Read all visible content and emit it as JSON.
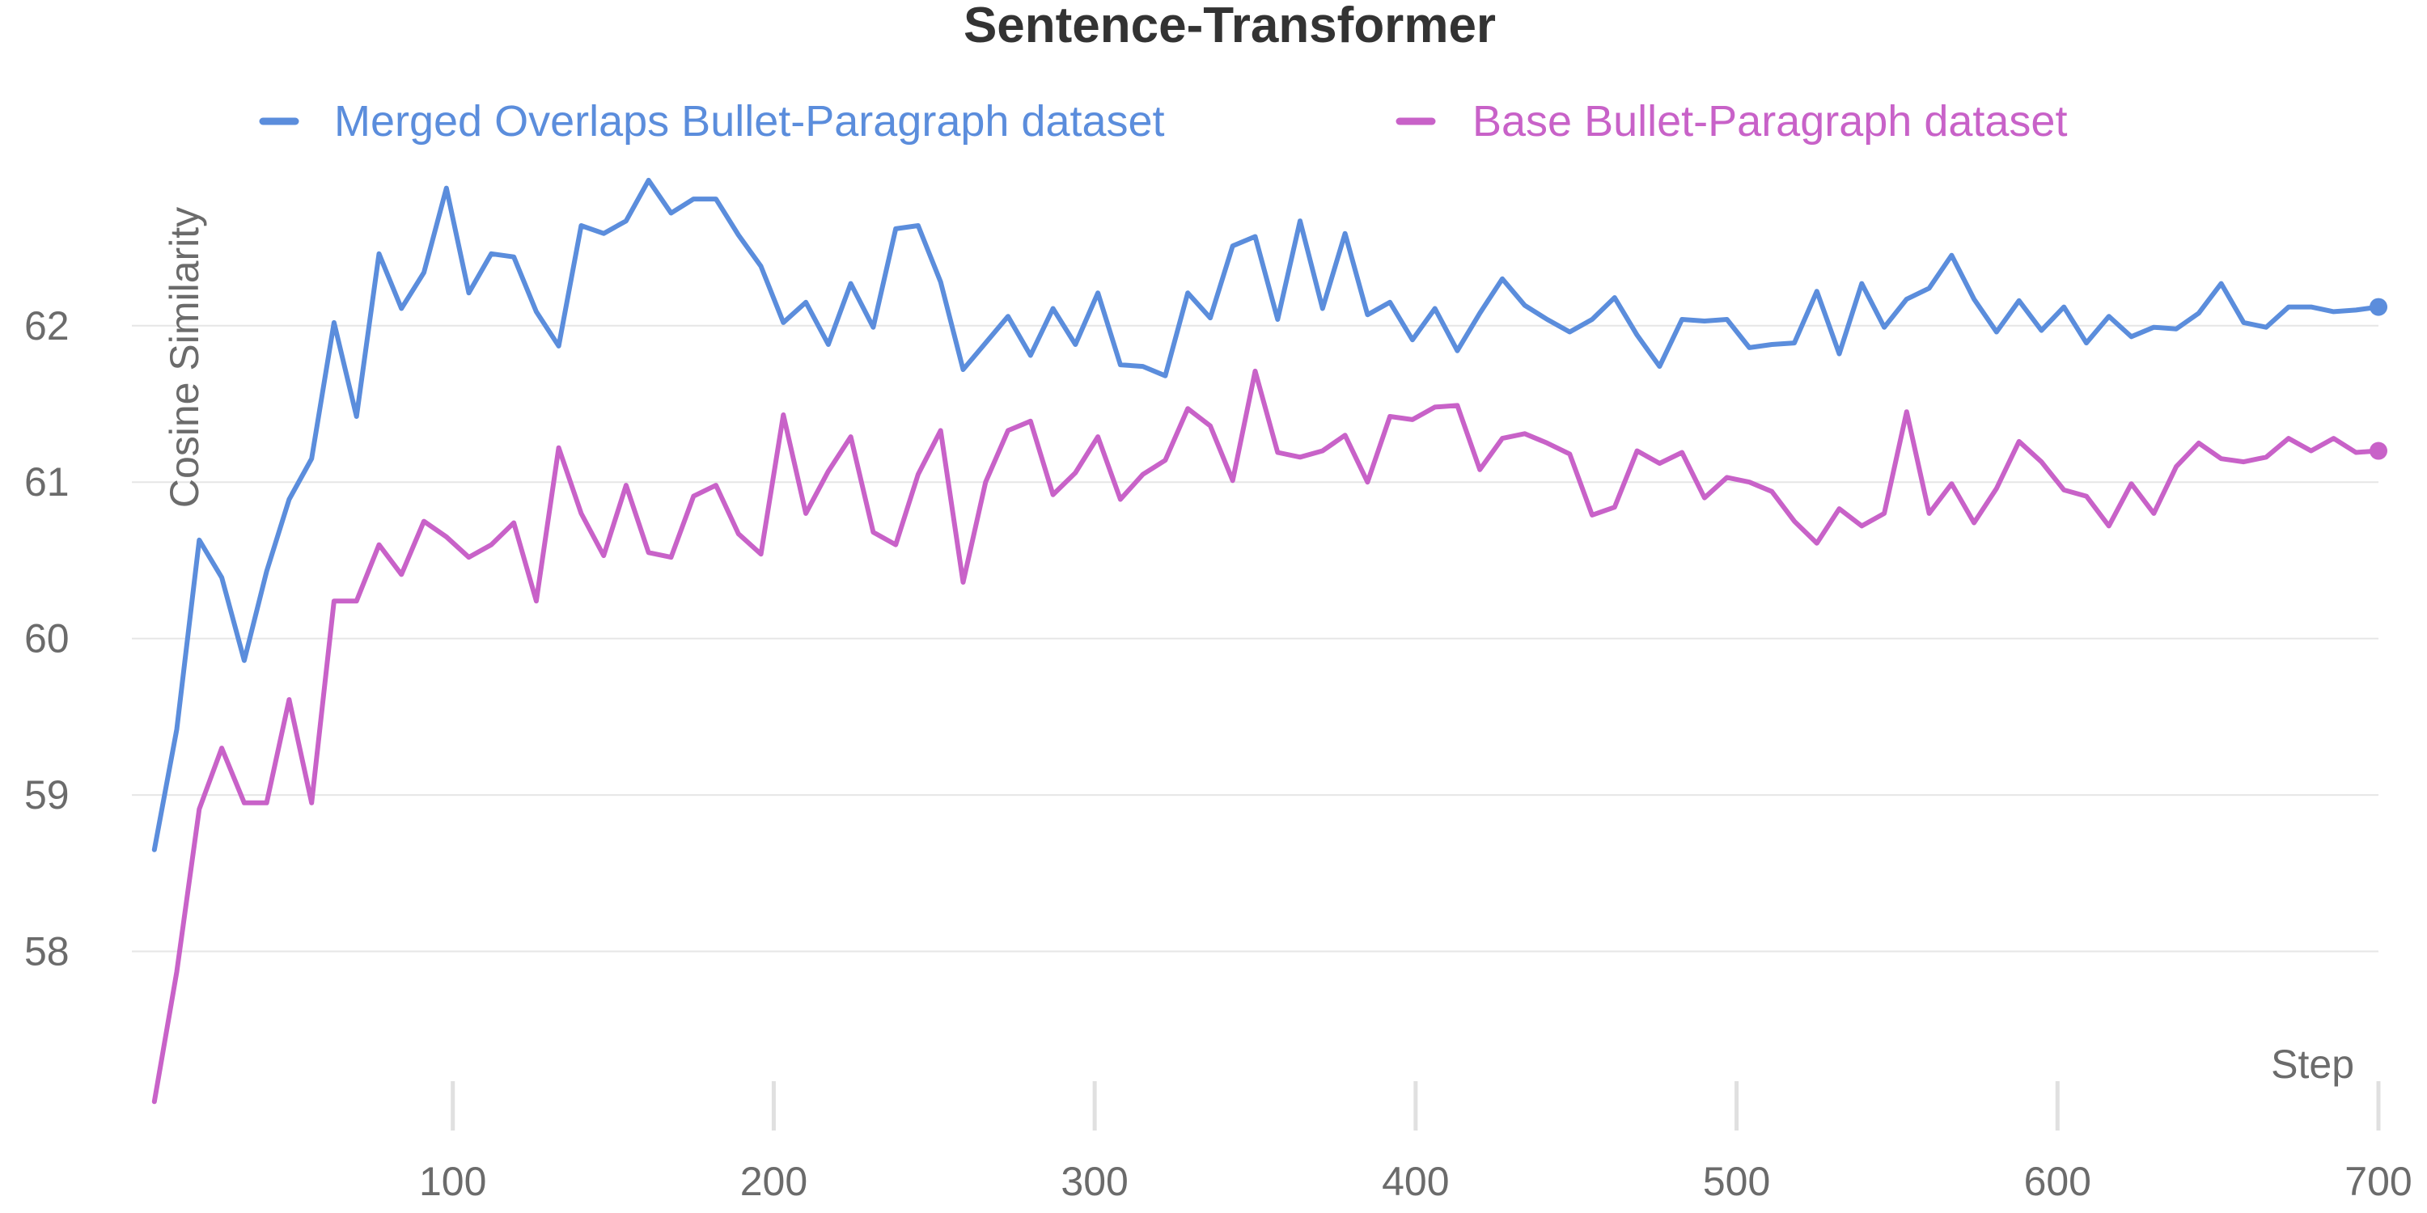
{
  "chart_data": {
    "type": "line",
    "title": "Sentence-Transformer",
    "xlabel": "Step",
    "ylabel": "Cosine Similarity",
    "xlim": [
      0,
      700
    ],
    "ylim": [
      57,
      63.1
    ],
    "xticks": [
      100,
      200,
      300,
      400,
      500,
      600,
      700
    ],
    "yticks": [
      58,
      59,
      60,
      61,
      62
    ],
    "grid": "horizontal",
    "legend_position": "top",
    "series": [
      {
        "name": "Merged Overlaps Bullet-Paragraph dataset",
        "color": "#5b8ddc",
        "x": [
          7,
          14,
          21,
          28,
          35,
          42,
          49,
          56,
          63,
          70,
          77,
          84,
          91,
          98,
          105,
          112,
          119,
          126,
          133,
          140,
          147,
          154,
          161,
          168,
          175,
          182,
          189,
          196,
          203,
          210,
          217,
          224,
          231,
          238,
          245,
          252,
          259,
          266,
          273,
          280,
          287,
          294,
          301,
          308,
          315,
          322,
          329,
          336,
          343,
          350,
          357,
          364,
          371,
          378,
          385,
          392,
          399,
          406,
          413,
          420,
          427,
          434,
          441,
          448,
          455,
          462,
          469,
          476,
          483,
          490,
          497,
          504,
          511,
          518,
          525,
          532,
          539,
          546,
          553,
          560,
          567,
          574,
          581,
          588,
          595,
          602,
          609,
          616,
          623,
          630,
          637,
          644,
          651,
          658,
          665,
          672,
          679,
          686,
          693,
          700
        ],
        "values": [
          58.65,
          59.42,
          60.63,
          60.39,
          59.86,
          60.43,
          60.89,
          61.15,
          62.02,
          61.42,
          62.46,
          62.11,
          62.34,
          62.88,
          62.21,
          62.46,
          62.44,
          62.09,
          61.87,
          62.64,
          62.59,
          62.67,
          62.93,
          62.72,
          62.81,
          62.81,
          62.58,
          62.38,
          62.02,
          62.15,
          61.88,
          62.27,
          61.99,
          62.62,
          62.64,
          62.28,
          61.72,
          61.89,
          62.06,
          61.81,
          62.11,
          61.88,
          62.21,
          61.75,
          61.74,
          61.68,
          62.21,
          62.05,
          62.51,
          62.57,
          62.04,
          62.67,
          62.11,
          62.59,
          62.07,
          62.15,
          61.91,
          62.11,
          61.84,
          62.08,
          62.3,
          62.13,
          62.04,
          61.96,
          62.04,
          62.18,
          61.94,
          61.74,
          62.04,
          62.03,
          62.04,
          61.86,
          61.88,
          61.89,
          62.22,
          61.82,
          62.27,
          61.99,
          62.17,
          62.24,
          62.45,
          62.17,
          61.96,
          62.16,
          61.97,
          62.12,
          61.89,
          62.06,
          61.93,
          61.99,
          61.98,
          62.08,
          62.27,
          62.02,
          61.99,
          62.12,
          62.12,
          62.09,
          62.1,
          62.12
        ]
      },
      {
        "name": "Base Bullet-Paragraph dataset",
        "color": "#c862c8",
        "x": [
          7,
          14,
          21,
          28,
          35,
          42,
          49,
          56,
          63,
          70,
          77,
          84,
          91,
          98,
          105,
          112,
          119,
          126,
          133,
          140,
          147,
          154,
          161,
          168,
          175,
          182,
          189,
          196,
          203,
          210,
          217,
          224,
          231,
          238,
          245,
          252,
          259,
          266,
          273,
          280,
          287,
          294,
          301,
          308,
          315,
          322,
          329,
          336,
          343,
          350,
          357,
          364,
          371,
          378,
          385,
          392,
          399,
          406,
          413,
          420,
          427,
          434,
          441,
          448,
          455,
          462,
          469,
          476,
          483,
          490,
          497,
          504,
          511,
          518,
          525,
          532,
          539,
          546,
          553,
          560,
          567,
          574,
          581,
          588,
          595,
          602,
          609,
          616,
          623,
          630,
          637,
          644,
          651,
          658,
          665,
          672,
          679,
          686,
          693,
          700
        ],
        "values": [
          57.04,
          57.87,
          58.91,
          59.3,
          58.95,
          58.95,
          59.61,
          58.95,
          60.24,
          60.24,
          60.6,
          60.41,
          60.75,
          60.65,
          60.52,
          60.6,
          60.74,
          60.24,
          61.22,
          60.8,
          60.53,
          60.98,
          60.55,
          60.52,
          60.91,
          60.98,
          60.67,
          60.54,
          61.43,
          60.8,
          61.07,
          61.29,
          60.68,
          60.6,
          61.05,
          61.33,
          60.36,
          61.0,
          61.33,
          61.39,
          60.92,
          61.06,
          61.29,
          60.89,
          61.05,
          61.14,
          61.47,
          61.36,
          61.01,
          61.71,
          61.19,
          61.16,
          61.2,
          61.3,
          61.0,
          61.42,
          61.4,
          61.48,
          61.49,
          61.08,
          61.28,
          61.31,
          61.25,
          61.18,
          60.79,
          60.84,
          61.2,
          61.12,
          61.19,
          60.9,
          61.03,
          61.0,
          60.94,
          60.75,
          60.61,
          60.83,
          60.72,
          60.8,
          61.45,
          60.8,
          60.99,
          60.74,
          60.96,
          61.26,
          61.13,
          60.95,
          60.91,
          60.72,
          60.99,
          60.8,
          61.1,
          61.25,
          61.15,
          61.13,
          61.16,
          61.28,
          61.2,
          61.28,
          61.19,
          61.2
        ]
      }
    ]
  }
}
